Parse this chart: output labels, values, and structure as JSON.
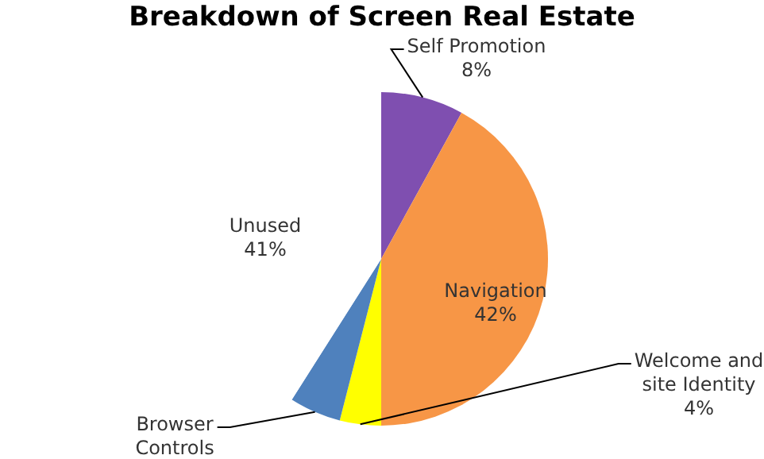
{
  "chart_data": {
    "type": "pie",
    "title": "Breakdown of Screen Real Estate",
    "categories": [
      "Self Promotion",
      "Navigation",
      "Welcome and site Identity",
      "Browser Controls",
      "Unused"
    ],
    "values": [
      8,
      42,
      4,
      5,
      41
    ],
    "colors": [
      "#7f4fb0",
      "#f79646",
      "#ffff00",
      "#4f81bd",
      "#ffffff"
    ],
    "value_labels": [
      "8%",
      "42%",
      "4%",
      null,
      "41%"
    ],
    "legend": false
  }
}
